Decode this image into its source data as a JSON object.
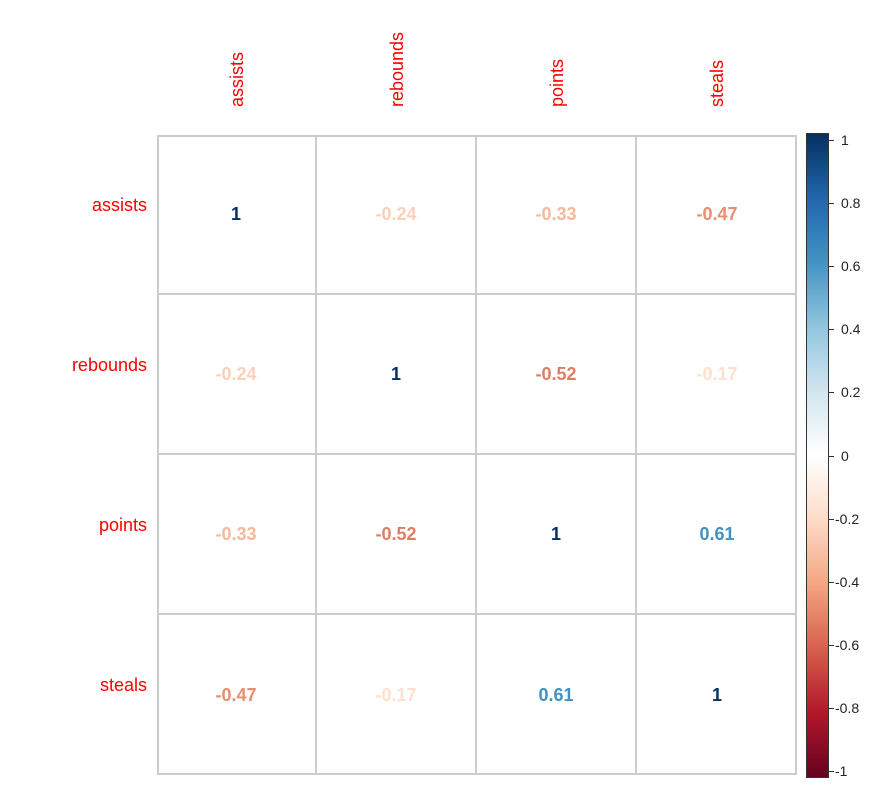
{
  "chart_data": {
    "type": "heatmap",
    "title": "",
    "variables": [
      "assists",
      "rebounds",
      "points",
      "steals"
    ],
    "matrix": [
      [
        1,
        -0.24,
        -0.33,
        -0.47
      ],
      [
        -0.24,
        1,
        -0.52,
        -0.17
      ],
      [
        -0.33,
        -0.52,
        1,
        0.61
      ],
      [
        -0.47,
        -0.17,
        0.61,
        1
      ]
    ],
    "labels": [
      [
        "1",
        "-0.24",
        "-0.33",
        "-0.47"
      ],
      [
        "-0.24",
        "1",
        "-0.52",
        "-0.17"
      ],
      [
        "-0.33",
        "-0.52",
        "1",
        "0.61"
      ],
      [
        "-0.47",
        "-0.17",
        "0.61",
        "1"
      ]
    ],
    "colorbar": {
      "range": [
        -1,
        1
      ],
      "ticks": [
        "1",
        "0.8",
        "0.6",
        "0.4",
        "0.2",
        "0",
        "-0.2",
        "-0.4",
        "-0.6",
        "-0.8",
        "-1"
      ],
      "colors": {
        "-1": "#67001f",
        "-0.8": "#b2182b",
        "-0.6": "#d6604d",
        "-0.4": "#f4a582",
        "-0.2": "#fddbc7",
        "0": "#ffffff",
        "0.2": "#d1e5f0",
        "0.4": "#92c5de",
        "0.6": "#4393c3",
        "0.8": "#2166ac",
        "1": "#053061"
      }
    },
    "label_color": "#ff0000",
    "grid_color": "#cccccc",
    "legend_position": "right"
  }
}
